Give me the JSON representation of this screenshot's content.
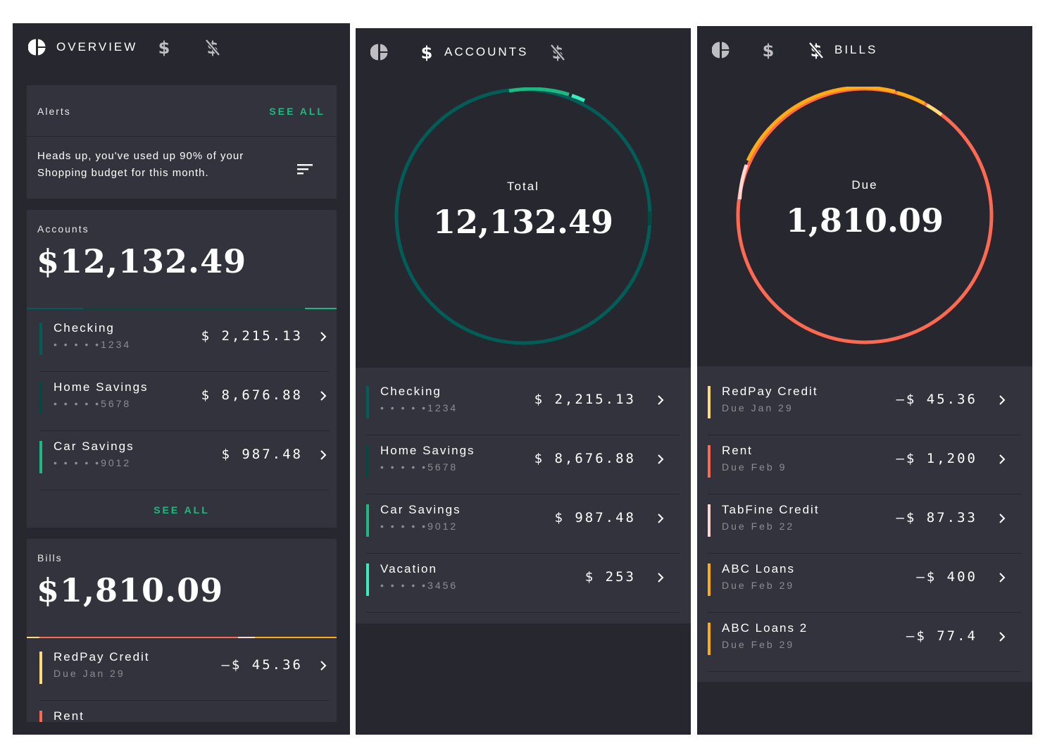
{
  "colors": {
    "accent_green": "#1eb980",
    "background": "#27272f",
    "card": "#33333d",
    "checking": "#005d57",
    "home_savings": "#04483f",
    "car_savings": "#1eb980",
    "vacation": "#37efba",
    "redpay": "#ffdc78",
    "rent": "#ff6951",
    "tabfine": "#ffd7d0",
    "abc_loans": "#ffac12",
    "abc_loans_2": "#ffac12"
  },
  "tabs": {
    "overview": {
      "label": "OVERVIEW",
      "icon": "pie-chart-icon"
    },
    "accounts": {
      "label": "ACCOUNTS",
      "icon": "dollar-icon"
    },
    "bills": {
      "label": "BILLS",
      "icon": "money-off-icon"
    }
  },
  "overview": {
    "alerts": {
      "title": "Alerts",
      "see_all": "SEE ALL",
      "message_line1": "Heads up, you've used up 90% of your",
      "message_line2": "Shopping budget for this month.",
      "action_icon": "sort-icon"
    },
    "accounts_card": {
      "title": "Accounts",
      "total": "$12,132.49",
      "see_all": "SEE ALL",
      "rows": [
        {
          "name": "Checking",
          "sub": "• • • • •1234",
          "amount": "$ 2,215.13"
        },
        {
          "name": "Home Savings",
          "sub": "• • • • •5678",
          "amount": "$ 8,676.88"
        },
        {
          "name": "Car Savings",
          "sub": "• • • • •9012",
          "amount": "$ 987.48"
        }
      ]
    },
    "bills_card": {
      "title": "Bills",
      "total": "$1,810.09",
      "rows": [
        {
          "name": "RedPay Credit",
          "sub": "Due Jan 29",
          "amount": "–$ 45.36"
        },
        {
          "name": "Rent"
        }
      ]
    }
  },
  "accounts_screen": {
    "donut_label": "Total",
    "donut_value": "12,132.49",
    "rows": [
      {
        "name": "Checking",
        "sub": "• • • • •1234",
        "amount": "$ 2,215.13"
      },
      {
        "name": "Home Savings",
        "sub": "• • • • •5678",
        "amount": "$ 8,676.88"
      },
      {
        "name": "Car Savings",
        "sub": "• • • • •9012",
        "amount": "$ 987.48"
      },
      {
        "name": "Vacation",
        "sub": "• • • • •3456",
        "amount": "$ 253"
      }
    ]
  },
  "bills_screen": {
    "donut_label": "Due",
    "donut_value": "1,810.09",
    "rows": [
      {
        "name": "RedPay Credit",
        "sub": "Due Jan 29",
        "amount": "–$ 45.36"
      },
      {
        "name": "Rent",
        "sub": "Due Feb 9",
        "amount": "–$ 1,200"
      },
      {
        "name": "TabFine Credit",
        "sub": "Due Feb 22",
        "amount": "–$ 87.33"
      },
      {
        "name": "ABC Loans",
        "sub": "Due Feb 29",
        "amount": "–$ 400"
      },
      {
        "name": "ABC Loans 2",
        "sub": "Due Feb 29",
        "amount": "–$ 77.4"
      }
    ]
  }
}
